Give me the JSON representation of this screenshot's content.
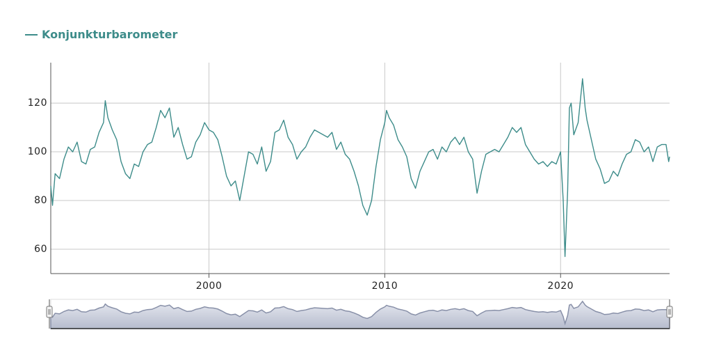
{
  "chart_data": {
    "type": "line",
    "x": [
      1991.0,
      1991.1,
      1991.25,
      1991.5,
      1991.75,
      1992.0,
      1992.25,
      1992.5,
      1992.75,
      1993.0,
      1993.25,
      1993.5,
      1993.75,
      1994.0,
      1994.1,
      1994.25,
      1994.5,
      1994.75,
      1995.0,
      1995.25,
      1995.5,
      1995.75,
      1996.0,
      1996.25,
      1996.5,
      1996.75,
      1997.0,
      1997.25,
      1997.5,
      1997.75,
      1998.0,
      1998.25,
      1998.5,
      1998.75,
      1999.0,
      1999.25,
      1999.5,
      1999.75,
      2000.0,
      2000.25,
      2000.5,
      2000.75,
      2001.0,
      2001.25,
      2001.5,
      2001.75,
      2002.0,
      2002.25,
      2002.5,
      2002.75,
      2003.0,
      2003.25,
      2003.5,
      2003.75,
      2004.0,
      2004.25,
      2004.5,
      2004.75,
      2005.0,
      2005.25,
      2005.5,
      2005.75,
      2006.0,
      2006.25,
      2006.5,
      2006.75,
      2007.0,
      2007.25,
      2007.5,
      2007.75,
      2008.0,
      2008.25,
      2008.5,
      2008.75,
      2009.0,
      2009.25,
      2009.5,
      2009.75,
      2010.0,
      2010.1,
      2010.25,
      2010.5,
      2010.75,
      2011.0,
      2011.25,
      2011.5,
      2011.75,
      2012.0,
      2012.25,
      2012.5,
      2012.75,
      2013.0,
      2013.25,
      2013.5,
      2013.75,
      2014.0,
      2014.25,
      2014.5,
      2014.75,
      2015.0,
      2015.25,
      2015.5,
      2015.75,
      2016.0,
      2016.25,
      2016.5,
      2016.75,
      2017.0,
      2017.25,
      2017.5,
      2017.75,
      2018.0,
      2018.25,
      2018.5,
      2018.75,
      2019.0,
      2019.25,
      2019.5,
      2019.75,
      2020.0,
      2020.15,
      2020.25,
      2020.4,
      2020.5,
      2020.6,
      2020.75,
      2021.0,
      2021.25,
      2021.4,
      2021.5,
      2021.75,
      2022.0,
      2022.25,
      2022.5,
      2022.75,
      2023.0,
      2023.25,
      2023.5,
      2023.75,
      2024.0,
      2024.25,
      2024.5,
      2024.75,
      2025.0,
      2025.25,
      2025.5,
      2025.75,
      2026.0,
      2026.15,
      2026.2
    ],
    "series": [
      {
        "name": "Konjunkturbarometer",
        "color": "#3d8c8a",
        "values": [
          86,
          78,
          91,
          89,
          97,
          102,
          100,
          104,
          96,
          95,
          101,
          102,
          108,
          112,
          121,
          114,
          109,
          105,
          96,
          91,
          89,
          95,
          94,
          100,
          103,
          104,
          110,
          117,
          114,
          118,
          106,
          110,
          103,
          97,
          98,
          104,
          107,
          112,
          109,
          108,
          105,
          98,
          90,
          86,
          88,
          80,
          90,
          100,
          99,
          95,
          102,
          92,
          96,
          108,
          109,
          113,
          106,
          103,
          97,
          100,
          102,
          106,
          109,
          108,
          107,
          106,
          108,
          101,
          104,
          99,
          97,
          92,
          86,
          78,
          74,
          80,
          94,
          105,
          112,
          117,
          114,
          111,
          105,
          102,
          98,
          89,
          85,
          92,
          96,
          100,
          101,
          97,
          102,
          100,
          104,
          106,
          103,
          106,
          100,
          97,
          83,
          92,
          99,
          100,
          101,
          100,
          103,
          106,
          110,
          108,
          110,
          103,
          100,
          97,
          95,
          96,
          94,
          96,
          95,
          100,
          80,
          57,
          84,
          118,
          120,
          107,
          112,
          130,
          118,
          113,
          105,
          97,
          93,
          87,
          88,
          92,
          90,
          95,
          99,
          100,
          105,
          104,
          100,
          102,
          96,
          102,
          103,
          103,
          96,
          98
        ]
      }
    ],
    "xlim": [
      1991,
      2026.2
    ],
    "ylim": [
      50,
      136.6
    ],
    "xticks": [
      2000,
      2010,
      2020
    ],
    "yticks": [
      60,
      80,
      100,
      120
    ],
    "grid": true
  }
}
